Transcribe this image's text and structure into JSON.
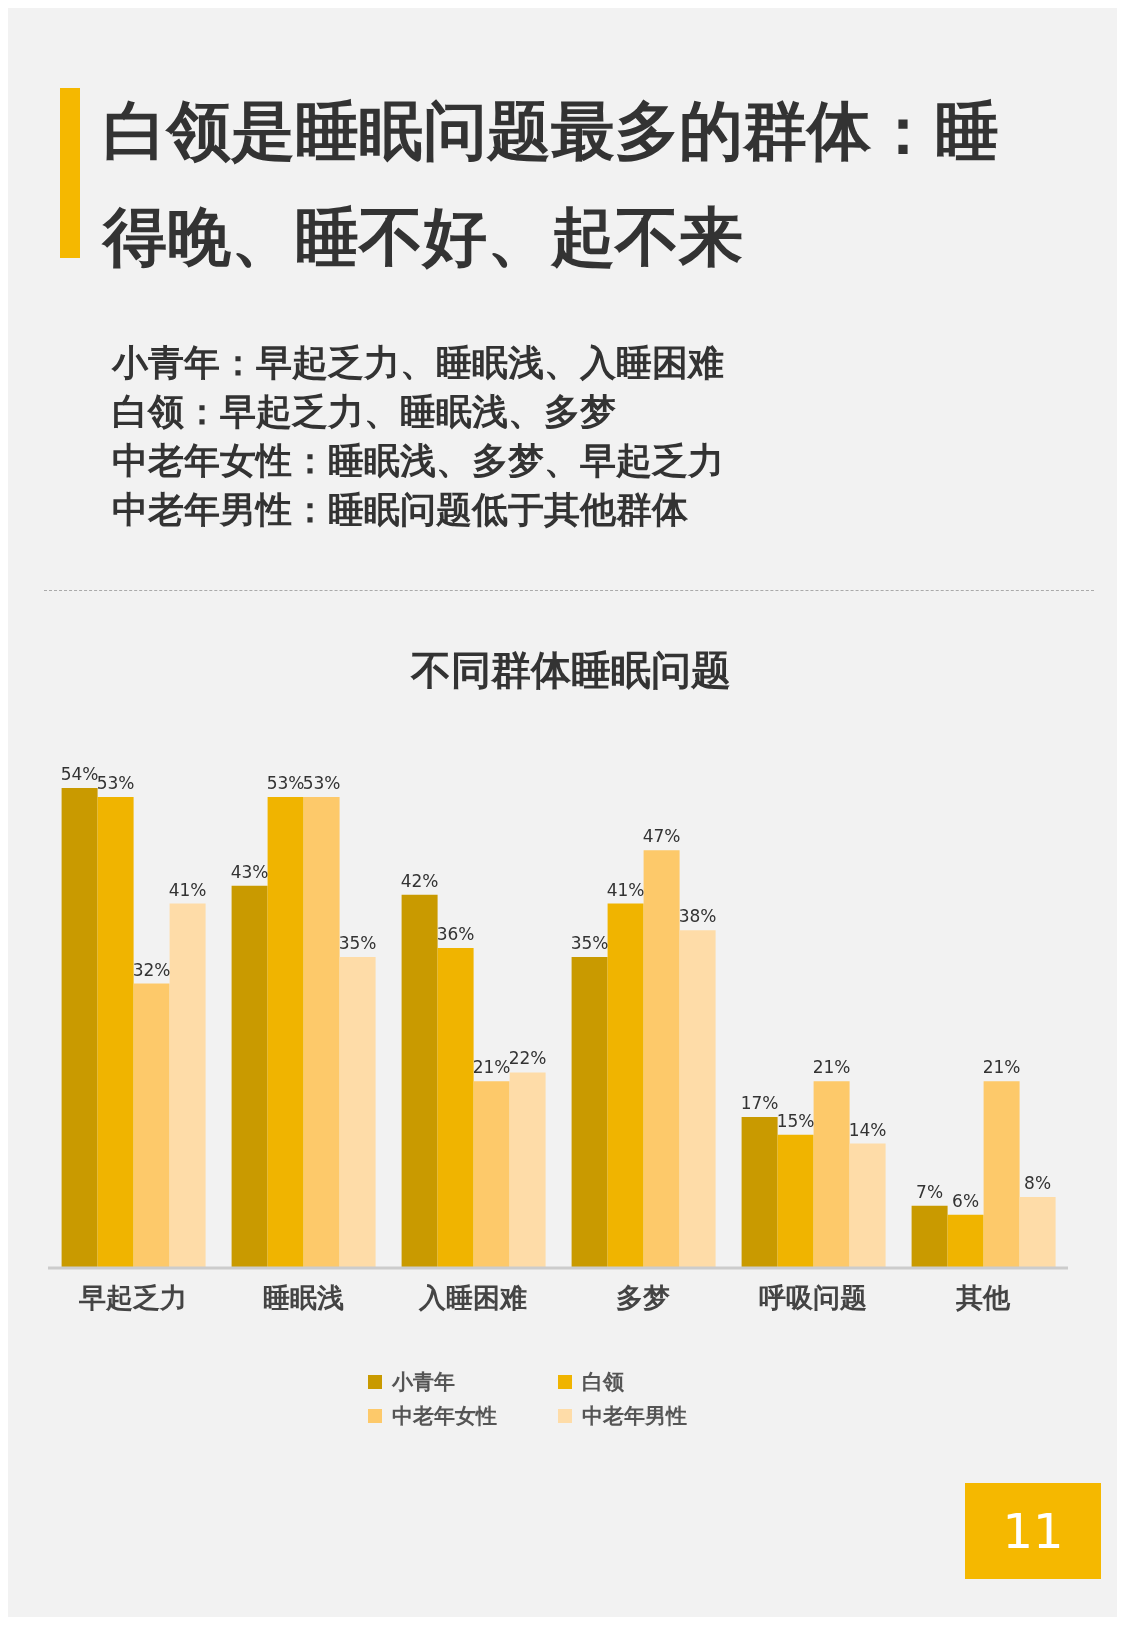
{
  "chart_data": {
    "type": "bar",
    "title": "白领是睡眠问题最多的群体：睡得晚、睡不好、起不来",
    "subtitle": "不同群体睡眠问题",
    "annotations": [
      "小青年：早起乏力、睡眠浅、入睡困难",
      "白领：早起乏力、睡眠浅、多梦",
      "中老年女性：睡眠浅、多梦、早起乏力",
      "中老年男性：睡眠问题低于其他群体",
      "11"
    ],
    "categories": [
      "早起乏力",
      "睡眠浅",
      "入睡困难",
      "多梦",
      "呼吸问题",
      "其他"
    ],
    "series": [
      {
        "name": "小青年",
        "color": "#c99a00",
        "values": [
          54,
          43,
          42,
          35,
          17,
          7
        ],
        "value_labels": [
          "54%",
          "43%",
          "42%",
          "35%",
          "17%",
          "7%"
        ]
      },
      {
        "name": "白领",
        "color": "#f0b400",
        "values": [
          53,
          53,
          36,
          41,
          15,
          6
        ],
        "value_labels": [
          "53%",
          "53%",
          "36%",
          "41%",
          "15%",
          "6%"
        ]
      },
      {
        "name": "中老年女性",
        "color": "#fdc96a",
        "values": [
          32,
          53,
          21,
          47,
          21,
          21
        ],
        "value_labels": [
          "32%",
          "53%",
          "21%",
          "47%",
          "21%",
          "21%"
        ]
      },
      {
        "name": "中老年男性",
        "color": "#fedca8",
        "values": [
          41,
          35,
          22,
          38,
          14,
          8
        ],
        "value_labels": [
          "41%",
          "35%",
          "22%",
          "38%",
          "14%",
          "8%"
        ]
      }
    ],
    "grid": false,
    "legend": "bottom"
  }
}
